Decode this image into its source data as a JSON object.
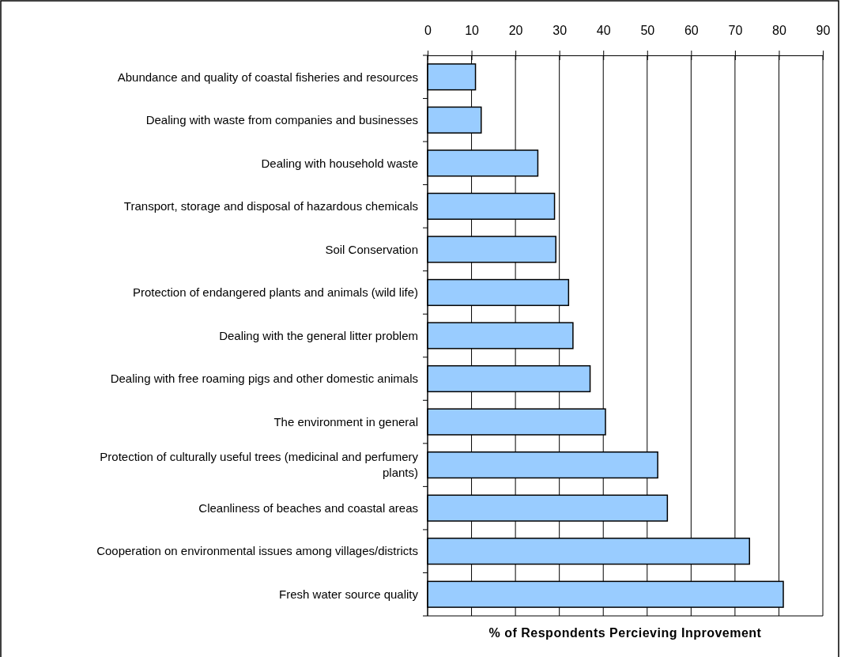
{
  "chart_data": {
    "type": "bar",
    "orientation": "horizontal",
    "xlabel": "% of Respondents Percieving Inprovement",
    "categories": [
      "Abundance and quality of coastal fisheries and resources",
      "Dealing with waste from companies and businesses",
      "Dealing with household waste",
      "Transport, storage and disposal of hazardous chemicals",
      "Soil Conservation",
      "Protection of endangered plants and animals (wild life)",
      "Dealing with the general litter problem",
      "Dealing with free roaming pigs and other domestic animals",
      "The environment in general",
      "Protection of culturally useful trees (medicinal and perfumery plants)",
      "Cleanliness of beaches and coastal areas",
      "Cooperation on environmental issues among villages/districts",
      "Fresh water source quality"
    ],
    "values": [
      10.9,
      12.2,
      25.1,
      28.9,
      29.2,
      32.1,
      33.1,
      37.0,
      40.5,
      52.4,
      54.6,
      73.3,
      81.0
    ],
    "color": "#99ccff",
    "xlim": [
      0,
      90
    ],
    "xticks": [
      0,
      10,
      20,
      30,
      40,
      50,
      60,
      70,
      80,
      90
    ],
    "grid": "x",
    "legend": false
  }
}
